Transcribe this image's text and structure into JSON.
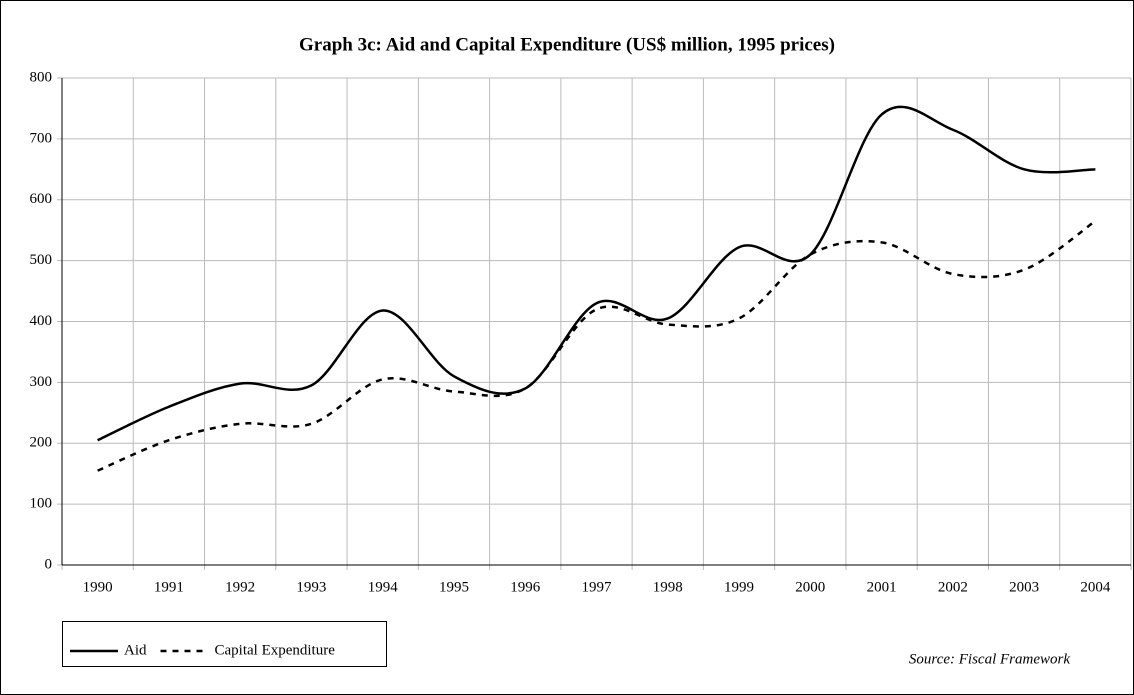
{
  "chart_data": {
    "type": "line",
    "title": "Graph 3c: Aid and Capital Expenditure (US$ million, 1995 prices)",
    "source": "Source: Fiscal Framework",
    "categories": [
      "1990",
      "1991",
      "1992",
      "1993",
      "1994",
      "1995",
      "1996",
      "1997",
      "1998",
      "1999",
      "2000",
      "2001",
      "2002",
      "2003",
      "2004"
    ],
    "series": [
      {
        "name": "Aid",
        "color": "#000000",
        "dash": "solid",
        "values": [
          205,
          260,
          298,
          295,
          418,
          310,
          290,
          430,
          405,
          522,
          510,
          740,
          715,
          650,
          650
        ]
      },
      {
        "name": "Capital Expenditure",
        "color": "#000000",
        "dash": "dashed",
        "values": [
          155,
          205,
          232,
          232,
          305,
          285,
          290,
          420,
          395,
          405,
          510,
          530,
          478,
          485,
          565
        ]
      }
    ],
    "ylim": [
      0,
      800
    ],
    "yticks": [
      0,
      100,
      200,
      300,
      400,
      500,
      600,
      700,
      800
    ],
    "grid": true,
    "smooth": true,
    "legend": "bottom-left"
  }
}
